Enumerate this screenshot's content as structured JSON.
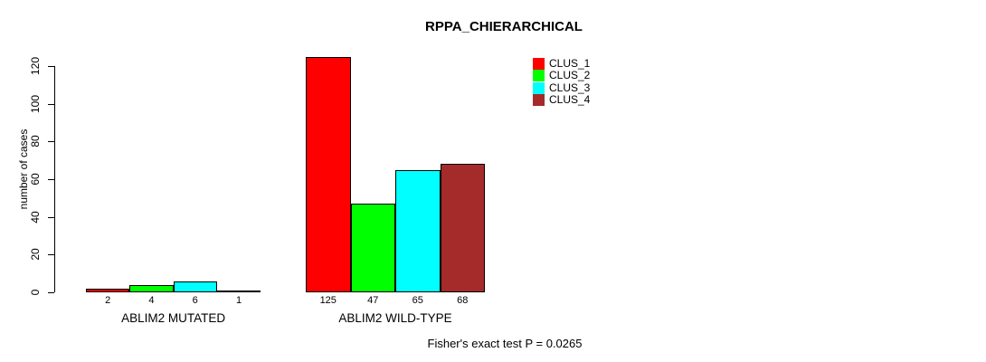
{
  "chart_data": {
    "type": "bar",
    "title": "RPPA_CHIERARCHICAL",
    "ylabel": "number of cases",
    "ylim": [
      0,
      120
    ],
    "yticks": [
      0,
      20,
      40,
      60,
      80,
      100,
      120
    ],
    "grid": false,
    "legend_position": "top-right",
    "legend": [
      {
        "label": "CLUS_1",
        "color": "#FF0000"
      },
      {
        "label": "CLUS_2",
        "color": "#00FF00"
      },
      {
        "label": "CLUS_3",
        "color": "#00FFFF"
      },
      {
        "label": "CLUS_4",
        "color": "#A52A2A"
      }
    ],
    "groups": [
      {
        "label": "ABLIM2 MUTATED",
        "values": [
          2,
          4,
          6,
          1
        ]
      },
      {
        "label": "ABLIM2 WILD-TYPE",
        "values": [
          125,
          47,
          65,
          68
        ]
      }
    ],
    "annotation": "Fisher's exact test P = 0.0265"
  }
}
